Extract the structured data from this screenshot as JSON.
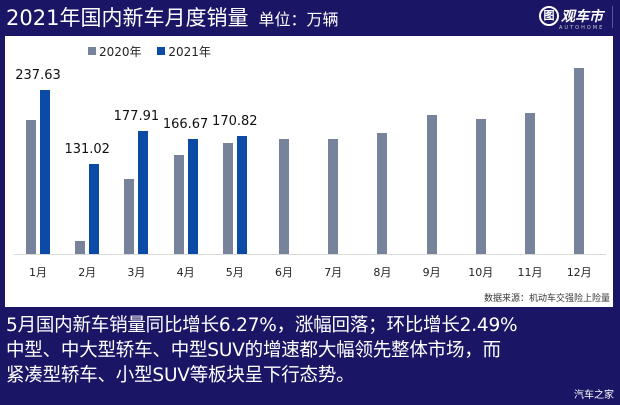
{
  "header": {
    "title": "2021年国内新车月度销量",
    "unit": "单位：万辆"
  },
  "logo": {
    "mark": "图",
    "name": "观车市",
    "sub": "AUTOHOME"
  },
  "colors": {
    "background": "#1b1566",
    "series_2020": "#76839a",
    "series_2021": "#0b4aa5"
  },
  "chart_data": {
    "type": "bar",
    "title": "2021年国内新车月度销量",
    "ylabel": "单位：万辆",
    "xlabel": "",
    "categories": [
      "1月",
      "2月",
      "3月",
      "4月",
      "5月",
      "6月",
      "7月",
      "8月",
      "9月",
      "10月",
      "11月",
      "12月"
    ],
    "series": [
      {
        "name": "2020年",
        "values": [
          194,
          19,
          109,
          143,
          161,
          166,
          167,
          175,
          201,
          196,
          204,
          270
        ]
      },
      {
        "name": "2021年",
        "values": [
          237.63,
          131.02,
          177.91,
          166.67,
          170.82,
          null,
          null,
          null,
          null,
          null,
          null,
          null
        ]
      }
    ],
    "data_labels": [
      "237.63",
      "131.02",
      "177.91",
      "166.67",
      "170.82"
    ],
    "ylim": [
      0,
      280
    ],
    "grid": false,
    "legend_position": "top",
    "source": "数据来源：机动车交强险上险量"
  },
  "legend": [
    {
      "label": "2020年"
    },
    {
      "label": "2021年"
    }
  ],
  "source_note": "数据来源：机动车交强险上险量",
  "caption": {
    "lines": [
      "5月国内新车销量同比增长6.27%，涨幅回落；环比增长2.49%",
      "中型、中大型轿车、中型SUV的增速都大幅领先整体市场，而",
      "紧凑型轿车、小型SUV等板块呈下行态势。"
    ]
  },
  "watermark": "汽车之家"
}
